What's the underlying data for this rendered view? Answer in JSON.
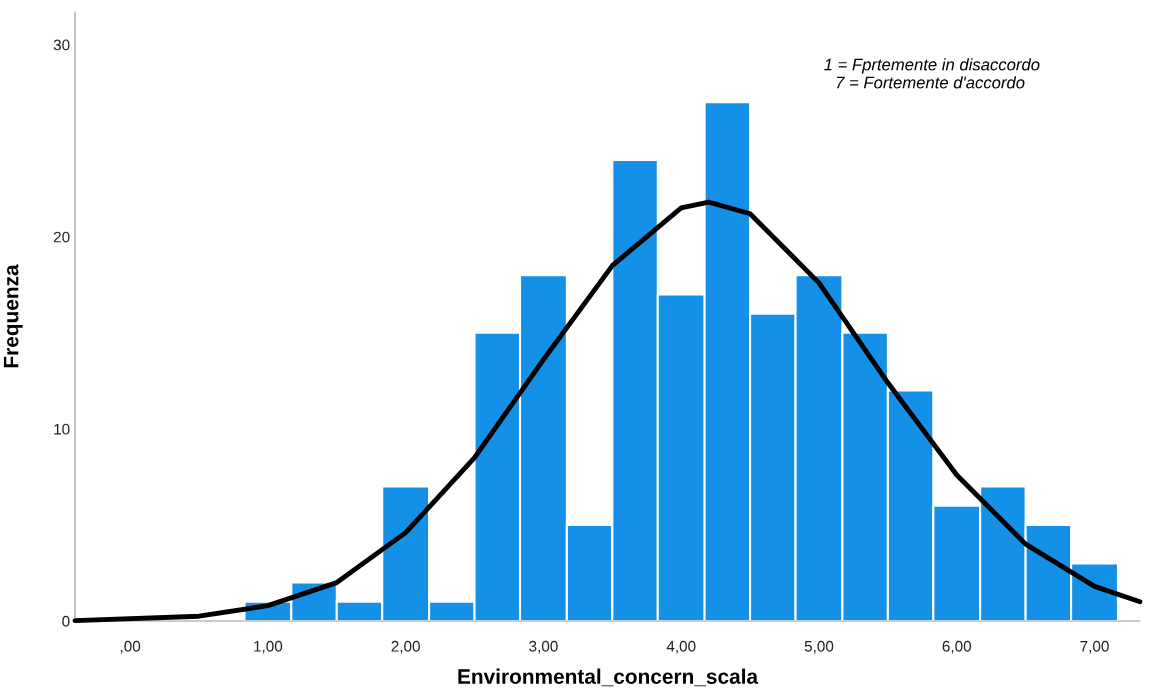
{
  "chart_data": {
    "type": "histogram",
    "xlabel": "Environmental_concern_scala",
    "ylabel": "Frequenza",
    "bins": [
      0.83,
      1.17,
      1.5,
      1.83,
      2.17,
      2.5,
      2.83,
      3.17,
      3.5,
      3.83,
      4.17,
      4.5,
      4.83,
      5.17,
      5.5,
      5.83,
      6.17,
      6.5,
      6.83,
      7.17
    ],
    "values": [
      1,
      2,
      1,
      7,
      1,
      15,
      18,
      5,
      24,
      17,
      27,
      16,
      18,
      15,
      12,
      6,
      7,
      5,
      3
    ],
    "color": "#1490e6",
    "series": [
      {
        "type": "line",
        "color": "#000000",
        "x": [
          -0.4,
          0.5,
          1,
          1.5,
          2,
          2.5,
          3,
          3.5,
          4,
          4.2,
          4.5,
          5,
          5.5,
          6,
          6.5,
          7,
          7.33
        ],
        "values": [
          0.02,
          0.25,
          0.8,
          2.0,
          4.6,
          8.5,
          13.6,
          18.5,
          21.5,
          21.8,
          21.2,
          17.6,
          12.4,
          7.6,
          4.0,
          1.8,
          1.0
        ]
      }
    ],
    "xlim": [
      -0.4,
      7.33
    ],
    "ylim": [
      0,
      31.7
    ],
    "xticks": [
      {
        "value": 0,
        "label": ",00"
      },
      {
        "value": 1,
        "label": "1,00"
      },
      {
        "value": 2,
        "label": "2,00"
      },
      {
        "value": 3,
        "label": "3,00"
      },
      {
        "value": 4,
        "label": "4,00"
      },
      {
        "value": 5,
        "label": "5,00"
      },
      {
        "value": 6,
        "label": "6,00"
      },
      {
        "value": 7,
        "label": "7,00"
      }
    ],
    "yticks": [
      0,
      10,
      20,
      30
    ],
    "grid": false,
    "annotations": [
      "1 = Fprtemente in disaccordo",
      "7 = Fortemente d'accordo"
    ]
  }
}
